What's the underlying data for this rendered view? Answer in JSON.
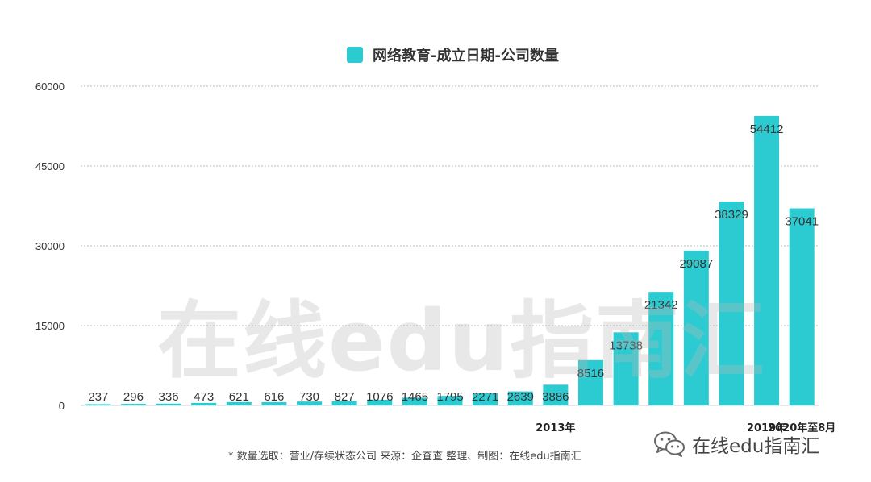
{
  "chart_data": {
    "type": "bar",
    "series_name": "网络教育-成立日期-公司数量",
    "categories": [
      "",
      "",
      "",
      "",
      "",
      "",
      "",
      "",
      "",
      "",
      "",
      "",
      "",
      "2013年",
      "",
      "",
      "",
      "",
      "",
      "2019年",
      "2020年至8月"
    ],
    "values": [
      237,
      296,
      336,
      473,
      621,
      616,
      730,
      827,
      1076,
      1465,
      1795,
      2271,
      2639,
      3886,
      8516,
      13738,
      21342,
      29087,
      38329,
      54412,
      37041
    ],
    "y_ticks": [
      "0",
      "15000",
      "30000",
      "45000",
      "60000"
    ],
    "ylim": [
      0,
      60000
    ],
    "grid": true,
    "legend_position": "top-center",
    "bar_color": "#2ccbd1"
  },
  "watermark_text": "在线edu指南汇",
  "footnote": "*    数量选取：营业/存续状态公司   来源：企查查    整理、制图：在线edu指南汇",
  "brand_label": "在线edu指南汇",
  "brand_icon": "wechat-icon"
}
